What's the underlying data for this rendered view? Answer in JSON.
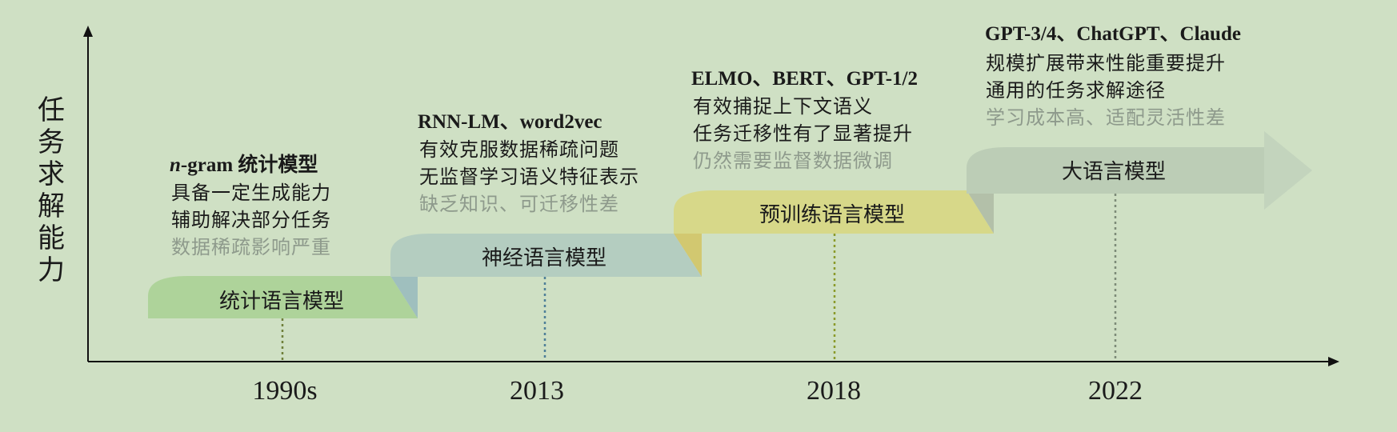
{
  "axis": {
    "y_label": [
      "任",
      "务",
      "求",
      "解",
      "能",
      "力"
    ]
  },
  "stages": [
    {
      "year": "1990s",
      "label": "统计语言模型",
      "model_prefix": "n",
      "model_rest": "-gram 统计模型",
      "pros": [
        "具备一定生成能力",
        "辅助解决部分任务"
      ],
      "cons": "数据稀疏影响严重",
      "color": "#aed39a",
      "fold_color": "#9fbfa8"
    },
    {
      "year": "2013",
      "label": "神经语言模型",
      "model_prefix": "",
      "model_rest": "RNN-LM、word2vec",
      "pros": [
        "有效克服数据稀疏问题",
        "无监督学习语义特征表示"
      ],
      "cons": "缺乏知识、可迁移性差",
      "color": "#b4cdc0",
      "fold_color": "#d2c870"
    },
    {
      "year": "2018",
      "label": "预训练语言模型",
      "model_prefix": "",
      "model_rest": "ELMO、BERT、GPT-1/2",
      "pros": [
        "有效捕捉上下文语义",
        "任务迁移性有了显著提升"
      ],
      "cons": "仍然需要监督数据微调",
      "color": "#d7d889",
      "fold_color": "#b3c0a9"
    },
    {
      "year": "2022",
      "label": "大语言模型",
      "model_prefix": "",
      "model_rest": "GPT-3/4、ChatGPT、Claude",
      "pros": [
        "规模扩展带来性能重要提升",
        "通用的任务求解途径"
      ],
      "cons": "学习成本高、适配灵活性差",
      "color": "#bccdb6",
      "fold_color": "#bccdb6"
    }
  ]
}
